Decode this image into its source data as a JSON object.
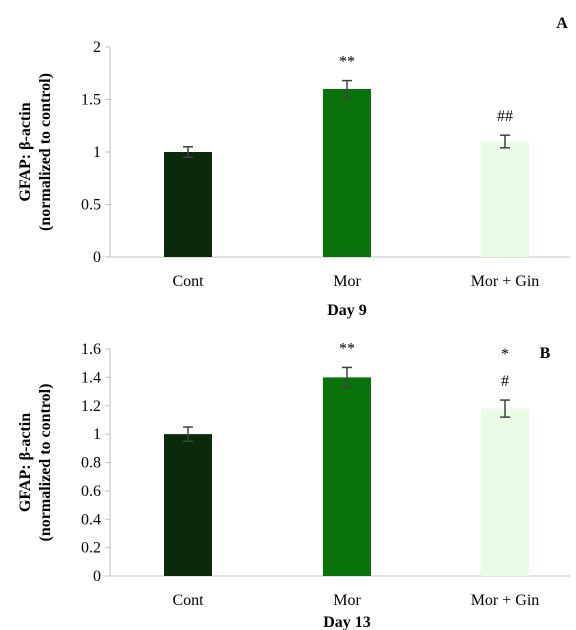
{
  "chart_data": [
    {
      "type": "bar",
      "panel_label": "A",
      "title": "",
      "categories": [
        "Cont",
        "Mor",
        "Mor + Gin"
      ],
      "values": [
        1.0,
        1.6,
        1.1
      ],
      "errors": [
        0.05,
        0.08,
        0.06
      ],
      "annotations": [
        "",
        "**",
        "##"
      ],
      "bar_colors": [
        "#0a2a0a",
        "#0a720a",
        "#eafbe6"
      ],
      "xlabel": "Day 9",
      "ylabel": [
        "GFAP: β-actin",
        "(normalized to control)"
      ],
      "ylim": [
        0,
        2
      ],
      "yticks": [
        "0",
        "0.5",
        "1",
        "1.5",
        "2"
      ],
      "grid": false
    },
    {
      "type": "bar",
      "panel_label": "B",
      "title": "",
      "categories": [
        "Cont",
        "Mor",
        "Mor + Gin"
      ],
      "values": [
        1.0,
        1.4,
        1.18
      ],
      "errors": [
        0.05,
        0.07,
        0.06
      ],
      "annotations": [
        "",
        "**",
        "*\n#"
      ],
      "bar_colors": [
        "#0a2a0a",
        "#0a720a",
        "#eafbe6"
      ],
      "xlabel": "Day 13",
      "ylabel": [
        "GFAP: β-actin",
        "(normalized to control)"
      ],
      "ylim": [
        0,
        1.6
      ],
      "yticks": [
        "0",
        "0.2",
        "0.4",
        "0.6",
        "0.8",
        "1",
        "1.2",
        "1.4",
        "1.6"
      ],
      "grid": false
    }
  ]
}
